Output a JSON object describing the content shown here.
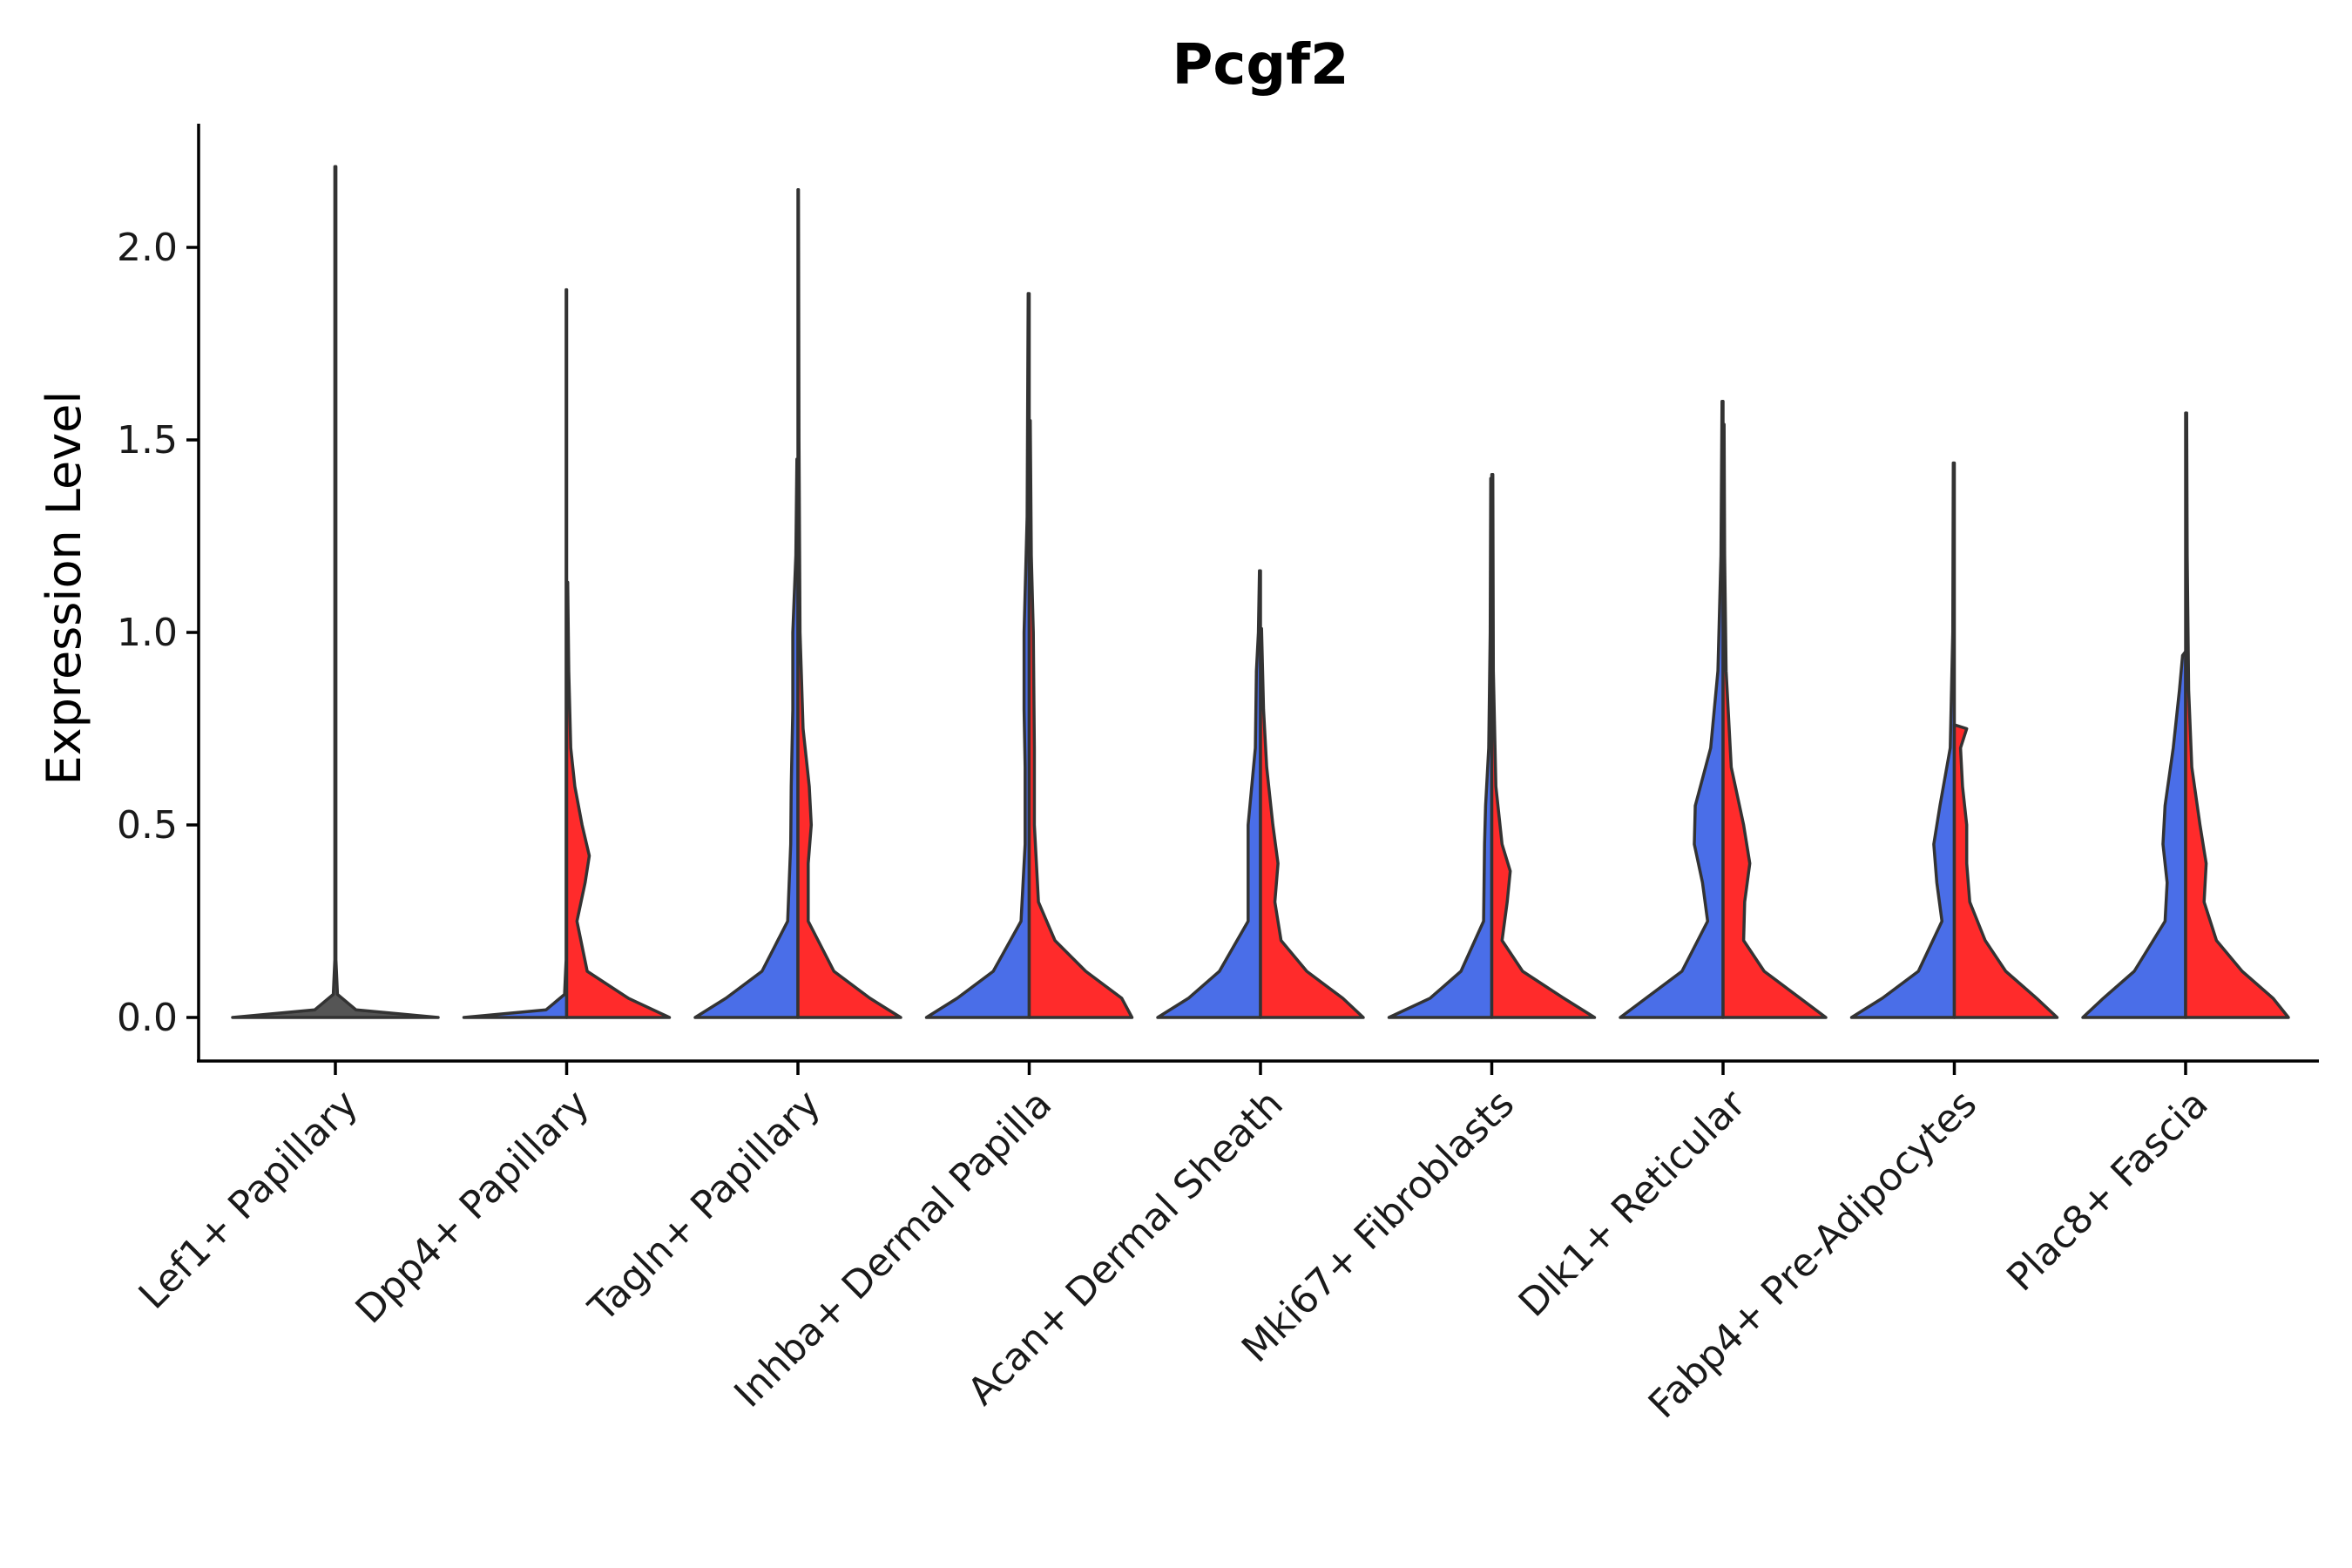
{
  "chart_data": {
    "type": "violin",
    "title": "Pcgf2",
    "xlabel": "",
    "ylabel": "Expression Level",
    "ylim": [
      -0.11,
      2.32
    ],
    "yticks": [
      0.0,
      0.5,
      1.0,
      1.5,
      2.0
    ],
    "ytick_labels": [
      "0.0",
      "0.5",
      "1.0",
      "1.5",
      "2.0"
    ],
    "categories": [
      "Lef1+ Papillary",
      "Dpp4+ Papillary",
      "Tagln+ Papillary",
      "Inhba+ Dermal Papilla",
      "Acan+ Dermal Sheath",
      "Mki67+ Fibroblasts",
      "Dlk1+ Reticular",
      "Fabp4+ Pre-Adipocytes",
      "Plac8+ Fascia"
    ],
    "series": [
      {
        "name": "group-1",
        "color": "#4A6EE8",
        "violins": [
          {
            "max": 2.21,
            "density": [
              [
                0,
                1
              ],
              [
                0.02,
                0.2
              ],
              [
                0.06,
                0.02
              ],
              [
                0.15,
                0.005
              ],
              [
                2.21,
                0.005
              ]
            ]
          },
          {
            "max": 1.89,
            "density": [
              [
                0,
                1
              ],
              [
                0.02,
                0.2
              ],
              [
                0.06,
                0.02
              ],
              [
                0.15,
                0.005
              ],
              [
                1.89,
                0.005
              ]
            ]
          },
          {
            "max": 1.45,
            "density": [
              [
                0,
                1
              ],
              [
                0.05,
                0.7
              ],
              [
                0.12,
                0.35
              ],
              [
                0.25,
                0.1
              ],
              [
                0.45,
                0.07
              ],
              [
                0.6,
                0.065
              ],
              [
                0.8,
                0.05
              ],
              [
                1.0,
                0.05
              ],
              [
                1.2,
                0.02
              ],
              [
                1.45,
                0.01
              ]
            ]
          },
          {
            "max": 1.88,
            "density": [
              [
                0,
                1
              ],
              [
                0.05,
                0.7
              ],
              [
                0.12,
                0.35
              ],
              [
                0.25,
                0.08
              ],
              [
                0.45,
                0.04
              ],
              [
                0.65,
                0.04
              ],
              [
                0.8,
                0.05
              ],
              [
                1.0,
                0.05
              ],
              [
                1.3,
                0.02
              ],
              [
                1.88,
                0.01
              ]
            ]
          },
          {
            "max": 1.16,
            "density": [
              [
                0,
                1
              ],
              [
                0.05,
                0.7
              ],
              [
                0.12,
                0.4
              ],
              [
                0.25,
                0.12
              ],
              [
                0.4,
                0.12
              ],
              [
                0.5,
                0.12
              ],
              [
                0.7,
                0.05
              ],
              [
                0.9,
                0.04
              ],
              [
                1.0,
                0.02
              ],
              [
                1.16,
                0.01
              ]
            ]
          },
          {
            "max": 1.4,
            "density": [
              [
                0,
                1
              ],
              [
                0.05,
                0.6
              ],
              [
                0.12,
                0.3
              ],
              [
                0.25,
                0.08
              ],
              [
                0.45,
                0.07
              ],
              [
                0.55,
                0.06
              ],
              [
                0.7,
                0.03
              ],
              [
                1.0,
                0.015
              ],
              [
                1.4,
                0.01
              ]
            ]
          },
          {
            "max": 1.6,
            "density": [
              [
                0,
                1
              ],
              [
                0.05,
                0.75
              ],
              [
                0.12,
                0.4
              ],
              [
                0.25,
                0.15
              ],
              [
                0.35,
                0.2
              ],
              [
                0.45,
                0.28
              ],
              [
                0.55,
                0.27
              ],
              [
                0.7,
                0.12
              ],
              [
                0.9,
                0.05
              ],
              [
                1.2,
                0.02
              ],
              [
                1.6,
                0.01
              ]
            ]
          },
          {
            "max": 1.44,
            "density": [
              [
                0,
                1
              ],
              [
                0.05,
                0.7
              ],
              [
                0.12,
                0.35
              ],
              [
                0.25,
                0.12
              ],
              [
                0.35,
                0.17
              ],
              [
                0.45,
                0.2
              ],
              [
                0.55,
                0.14
              ],
              [
                0.7,
                0.04
              ],
              [
                1.0,
                0.015
              ],
              [
                1.44,
                0.01
              ]
            ]
          },
          {
            "max": 0.95,
            "density": [
              [
                0,
                1
              ],
              [
                0.05,
                0.8
              ],
              [
                0.12,
                0.5
              ],
              [
                0.25,
                0.2
              ],
              [
                0.35,
                0.18
              ],
              [
                0.45,
                0.22
              ],
              [
                0.55,
                0.2
              ],
              [
                0.7,
                0.12
              ],
              [
                0.85,
                0.06
              ],
              [
                0.94,
                0.03
              ],
              [
                0.95,
                0.001
              ]
            ]
          }
        ]
      },
      {
        "name": "group-2",
        "color": "#FF2B2B",
        "violins": [
          null,
          {
            "max": 1.13,
            "density": [
              [
                0,
                1
              ],
              [
                0.05,
                0.6
              ],
              [
                0.12,
                0.2
              ],
              [
                0.25,
                0.1
              ],
              [
                0.35,
                0.18
              ],
              [
                0.42,
                0.22
              ],
              [
                0.5,
                0.15
              ],
              [
                0.6,
                0.08
              ],
              [
                0.7,
                0.04
              ],
              [
                0.9,
                0.02
              ],
              [
                1.13,
                0.01
              ]
            ]
          },
          {
            "max": 2.15,
            "density": [
              [
                0,
                1
              ],
              [
                0.05,
                0.7
              ],
              [
                0.12,
                0.35
              ],
              [
                0.25,
                0.1
              ],
              [
                0.4,
                0.1
              ],
              [
                0.5,
                0.13
              ],
              [
                0.6,
                0.11
              ],
              [
                0.75,
                0.05
              ],
              [
                1.0,
                0.02
              ],
              [
                1.5,
                0.01
              ],
              [
                2.15,
                0.005
              ]
            ]
          },
          {
            "max": 1.55,
            "density": [
              [
                0,
                1
              ],
              [
                0.05,
                0.9
              ],
              [
                0.12,
                0.55
              ],
              [
                0.2,
                0.25
              ],
              [
                0.3,
                0.09
              ],
              [
                0.5,
                0.05
              ],
              [
                0.7,
                0.05
              ],
              [
                1.0,
                0.04
              ],
              [
                1.2,
                0.02
              ],
              [
                1.55,
                0.01
              ]
            ]
          },
          {
            "max": 1.01,
            "density": [
              [
                0,
                1
              ],
              [
                0.05,
                0.8
              ],
              [
                0.12,
                0.45
              ],
              [
                0.2,
                0.2
              ],
              [
                0.3,
                0.14
              ],
              [
                0.4,
                0.17
              ],
              [
                0.5,
                0.12
              ],
              [
                0.65,
                0.06
              ],
              [
                0.8,
                0.03
              ],
              [
                1.01,
                0.01
              ]
            ]
          },
          {
            "max": 1.41,
            "density": [
              [
                0,
                1
              ],
              [
                0.05,
                0.7
              ],
              [
                0.12,
                0.3
              ],
              [
                0.2,
                0.1
              ],
              [
                0.3,
                0.15
              ],
              [
                0.38,
                0.18
              ],
              [
                0.45,
                0.1
              ],
              [
                0.6,
                0.04
              ],
              [
                0.9,
                0.015
              ],
              [
                1.41,
                0.01
              ]
            ]
          },
          {
            "max": 1.54,
            "density": [
              [
                0,
                1
              ],
              [
                0.05,
                0.75
              ],
              [
                0.12,
                0.4
              ],
              [
                0.2,
                0.2
              ],
              [
                0.3,
                0.21
              ],
              [
                0.4,
                0.26
              ],
              [
                0.5,
                0.2
              ],
              [
                0.65,
                0.08
              ],
              [
                0.9,
                0.03
              ],
              [
                1.2,
                0.015
              ],
              [
                1.54,
                0.01
              ]
            ]
          },
          {
            "max": 0.76,
            "density": [
              [
                0,
                1
              ],
              [
                0.05,
                0.8
              ],
              [
                0.12,
                0.5
              ],
              [
                0.2,
                0.3
              ],
              [
                0.3,
                0.15
              ],
              [
                0.4,
                0.12
              ],
              [
                0.5,
                0.12
              ],
              [
                0.6,
                0.08
              ],
              [
                0.7,
                0.06
              ],
              [
                0.75,
                0.12
              ],
              [
                0.76,
                0.001
              ]
            ]
          },
          {
            "max": 1.57,
            "density": [
              [
                0,
                1
              ],
              [
                0.05,
                0.85
              ],
              [
                0.12,
                0.55
              ],
              [
                0.2,
                0.3
              ],
              [
                0.3,
                0.18
              ],
              [
                0.4,
                0.2
              ],
              [
                0.5,
                0.14
              ],
              [
                0.65,
                0.06
              ],
              [
                0.85,
                0.03
              ],
              [
                1.2,
                0.015
              ],
              [
                1.57,
                0.01
              ]
            ]
          }
        ]
      }
    ]
  }
}
